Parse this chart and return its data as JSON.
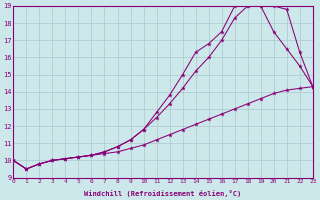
{
  "xlabel": "Windchill (Refroidissement éolien,°C)",
  "xlim": [
    0,
    23
  ],
  "ylim": [
    9,
    19
  ],
  "yticks": [
    9,
    10,
    11,
    12,
    13,
    14,
    15,
    16,
    17,
    18,
    19
  ],
  "xticks": [
    0,
    1,
    2,
    3,
    4,
    5,
    6,
    7,
    8,
    9,
    10,
    11,
    12,
    13,
    14,
    15,
    16,
    17,
    18,
    19,
    20,
    21,
    22,
    23
  ],
  "bg_color": "#cce8ea",
  "grid_color": "#aac8cc",
  "line_color": "#880077",
  "line1_x": [
    0,
    1,
    2,
    3,
    4,
    5,
    6,
    7,
    8,
    9,
    10,
    11,
    12,
    13,
    14,
    15,
    16,
    17,
    18,
    19,
    20,
    21,
    22,
    23
  ],
  "line1_y": [
    10.0,
    9.5,
    9.8,
    10.0,
    10.1,
    10.2,
    10.3,
    10.4,
    10.5,
    10.7,
    10.9,
    11.2,
    11.5,
    11.8,
    12.1,
    12.4,
    12.7,
    13.0,
    13.3,
    13.6,
    13.9,
    14.1,
    14.2,
    14.3
  ],
  "line2_x": [
    0,
    1,
    2,
    3,
    4,
    5,
    6,
    7,
    8,
    9,
    10,
    11,
    12,
    13,
    14,
    15,
    16,
    17,
    18,
    19,
    20,
    21,
    22,
    23
  ],
  "line2_y": [
    10.0,
    9.5,
    9.8,
    10.0,
    10.1,
    10.2,
    10.3,
    10.5,
    10.8,
    11.2,
    11.8,
    12.5,
    13.3,
    14.2,
    15.2,
    16.0,
    17.0,
    18.3,
    19.0,
    19.0,
    17.5,
    16.5,
    15.5,
    14.3
  ],
  "line3_x": [
    0,
    1,
    2,
    3,
    4,
    5,
    6,
    7,
    8,
    9,
    10,
    11,
    12,
    13,
    14,
    15,
    16,
    17,
    18,
    19,
    20,
    21,
    22,
    23
  ],
  "line3_y": [
    10.0,
    9.5,
    9.8,
    10.0,
    10.1,
    10.2,
    10.3,
    10.5,
    10.8,
    11.2,
    11.8,
    12.8,
    13.8,
    15.0,
    16.3,
    16.8,
    17.5,
    19.0,
    19.0,
    19.0,
    19.0,
    18.8,
    16.3,
    14.3
  ]
}
